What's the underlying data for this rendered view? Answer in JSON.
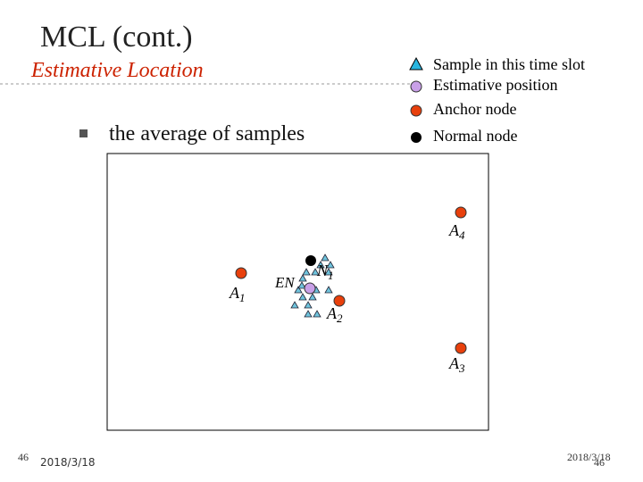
{
  "header": {
    "title": "MCL (cont.)",
    "subtitle": "Estimative Location"
  },
  "bullet": "the average of samples",
  "legend": [
    "Sample in this time slot",
    "Estimative position",
    "Anchor node",
    "Normal node"
  ],
  "nodes": [
    {
      "label": "A",
      "sub": "4"
    },
    {
      "label": "A",
      "sub": "1"
    },
    {
      "label": "A",
      "sub": "2"
    },
    {
      "label": "A",
      "sub": "3"
    },
    {
      "label": "N",
      "sub": "1"
    }
  ],
  "estimate_label": "EN",
  "footer": {
    "left_page": "46",
    "left_date": "2018/3/18",
    "right_date": "2018/3/18",
    "right_page": "46"
  }
}
